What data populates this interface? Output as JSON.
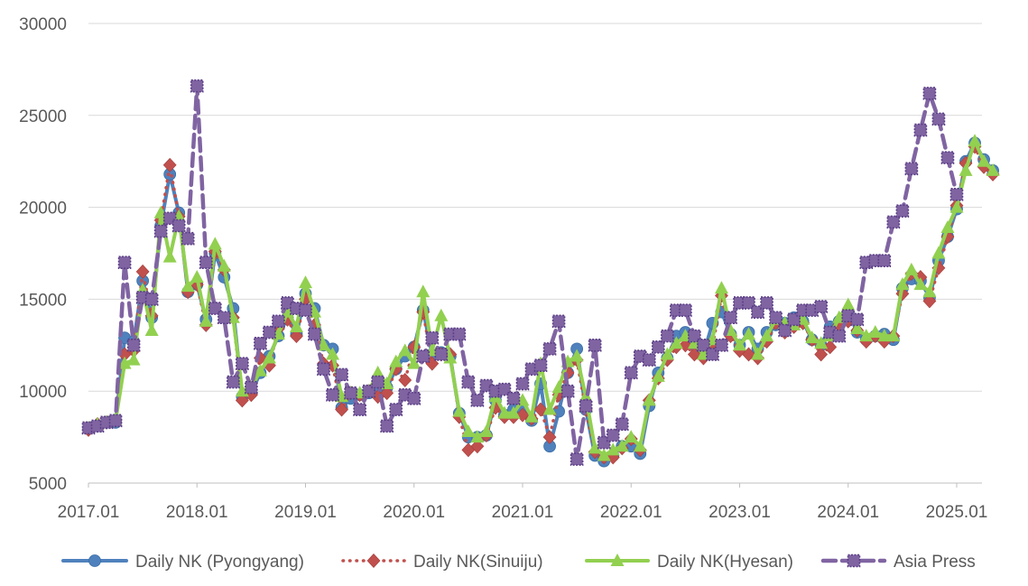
{
  "chart_data": {
    "type": "line",
    "title": "",
    "xlabel": "",
    "ylabel": "",
    "ylim": [
      5000,
      30000
    ],
    "yticks": [
      5000,
      10000,
      15000,
      20000,
      25000,
      30000
    ],
    "yticks_labels": [
      "5000",
      "10000",
      "15000",
      "20000",
      "25000",
      "30000"
    ],
    "x_start": "2017.01",
    "x_end": "2025.03",
    "xticks_labels": [
      "2017.01",
      "2018.01",
      "2019.01",
      "2020.01",
      "2021.01",
      "2022.01",
      "2023.01",
      "2024.01",
      "2025.01"
    ],
    "grid": "horizontal",
    "legend": "bottom",
    "colors": {
      "Daily NK (Pyongyang)": "#4f81bd",
      "Daily NK(Sinuiju)": "#c0504d",
      "Daily NK(Hyesan)": "#92d050",
      "Asia Press": "#8064a2"
    },
    "series": [
      {
        "name": "Daily NK (Pyongyang)",
        "values": [
          8000,
          8100,
          8300,
          8300,
          12900,
          12700,
          16000,
          14000,
          19000,
          21800,
          19700,
          15400,
          15800,
          13900,
          17500,
          16200,
          14500,
          9700,
          9900,
          11000,
          11900,
          13000,
          14000,
          13100,
          15300,
          14500,
          12500,
          12300,
          9100,
          9600,
          9800,
          9900,
          10000,
          10200,
          11200,
          11900,
          12400,
          14400,
          12000,
          12100,
          11900,
          8800,
          7500,
          7500,
          7600,
          9500,
          8700,
          9000,
          9000,
          8400,
          10400,
          7000,
          8900,
          11000,
          12300,
          9000,
          6500,
          6200,
          6500,
          7000,
          7000,
          6600,
          9200,
          11000,
          11800,
          13000,
          13200,
          12500,
          12000,
          13700,
          14300,
          13100,
          12500,
          13200,
          12300,
          13200,
          13600,
          13700,
          14000,
          13800,
          12800,
          12500,
          13500,
          13800,
          14300,
          13200,
          12800,
          13000,
          13100,
          12800,
          15600,
          16100,
          16000,
          15100,
          17100,
          18400,
          19900,
          22500,
          23500,
          22600,
          22000
        ],
        "line": "solid",
        "marker": "circle"
      },
      {
        "name": "Daily NK(Sinuiju)",
        "values": [
          7900,
          8200,
          8300,
          8400,
          12000,
          12200,
          16500,
          14100,
          19300,
          22300,
          19500,
          15400,
          15800,
          13600,
          17600,
          16600,
          14000,
          9500,
          9800,
          11800,
          11400,
          13400,
          13900,
          13000,
          15000,
          13600,
          11500,
          11400,
          9000,
          9900,
          9800,
          10000,
          9700,
          9900,
          11200,
          10600,
          12400,
          14300,
          11500,
          12000,
          12000,
          8600,
          6800,
          7000,
          7600,
          9100,
          8600,
          8600,
          8700,
          8500,
          9000,
          7500,
          9800,
          11000,
          11700,
          9000,
          6700,
          6400,
          6400,
          6900,
          7400,
          6800,
          9500,
          10700,
          11700,
          12400,
          12500,
          12000,
          11800,
          12400,
          15200,
          13000,
          12200,
          12000,
          11800,
          12700,
          13700,
          13200,
          13500,
          13700,
          12800,
          12000,
          12400,
          13600,
          13800,
          13300,
          12700,
          13000,
          12700,
          13000,
          15300,
          16400,
          16200,
          14900,
          16700,
          18400,
          20100,
          22400,
          23300,
          22200,
          21800
        ],
        "line": "dotted",
        "marker": "diamond"
      },
      {
        "name": "Daily NK(Hyesan)",
        "values": [
          8000,
          8200,
          8300,
          8400,
          11500,
          11700,
          15500,
          13300,
          19700,
          17300,
          19500,
          15700,
          16200,
          13800,
          18000,
          16800,
          14000,
          10000,
          10200,
          11100,
          11800,
          13100,
          14300,
          13500,
          15900,
          14300,
          12500,
          12000,
          9700,
          9900,
          9900,
          10000,
          11000,
          10400,
          11600,
          12200,
          11500,
          15400,
          12200,
          14100,
          11800,
          8900,
          7800,
          7500,
          7800,
          9700,
          8800,
          8800,
          9500,
          8600,
          11500,
          9000,
          10200,
          11600,
          11900,
          9700,
          6900,
          6500,
          6800,
          7000,
          7500,
          7000,
          9500,
          10800,
          12000,
          12600,
          13000,
          12600,
          12000,
          12800,
          15600,
          13300,
          12500,
          13100,
          12000,
          13000,
          13900,
          13700,
          13600,
          13900,
          12900,
          12600,
          13000,
          14000,
          14700,
          13400,
          13000,
          13200,
          13000,
          13000,
          15800,
          16600,
          15800,
          15400,
          17500,
          18900,
          20000,
          22000,
          23600,
          22500,
          22000
        ],
        "line": "solid",
        "marker": "triangle"
      },
      {
        "name": "Asia Press",
        "values": [
          8000,
          8100,
          8300,
          8400,
          17000,
          12500,
          15100,
          15000,
          18700,
          19400,
          19000,
          18300,
          26600,
          17000,
          14500,
          14000,
          10500,
          11500,
          10200,
          12600,
          13200,
          13800,
          14800,
          14500,
          14400,
          13100,
          11200,
          9800,
          10900,
          9900,
          9000,
          10000,
          10500,
          8100,
          9000,
          9800,
          9600,
          11900,
          12900,
          12000,
          13100,
          13100,
          10500,
          9500,
          10300,
          10000,
          10100,
          9600,
          10400,
          11200,
          11400,
          12300,
          13800,
          10000,
          6300,
          9200,
          12500,
          7200,
          7600,
          8200,
          11000,
          11900,
          11700,
          12400,
          13000,
          14400,
          14400,
          13000,
          12500,
          12000,
          12500,
          14000,
          14800,
          14800,
          14300,
          14800,
          14000,
          13300,
          13900,
          14400,
          14400,
          14600,
          13200,
          13000,
          14100,
          13900,
          17000,
          17100,
          17100,
          19200,
          19800,
          22100,
          24200,
          26200,
          24800,
          22700,
          20700
        ],
        "line": "dashed",
        "marker": "square"
      }
    ]
  }
}
